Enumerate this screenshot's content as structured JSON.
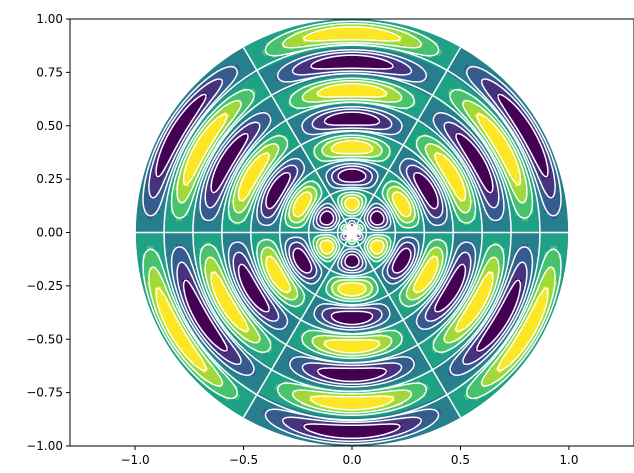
{
  "chart_data": {
    "type": "heatmap",
    "title": "",
    "xlabel": "",
    "ylabel": "",
    "xlim": [
      -1.3,
      1.3
    ],
    "ylim": [
      -1.0,
      1.0
    ],
    "x_ticks": [
      -1.0,
      -0.5,
      0.0,
      0.5,
      1.0
    ],
    "x_tick_labels": [
      "−1.0",
      "−0.5",
      "0.0",
      "0.5",
      "1.0"
    ],
    "y_ticks": [
      -1.0,
      -0.75,
      -0.5,
      -0.25,
      0.0,
      0.25,
      0.5,
      0.75,
      1.0
    ],
    "y_tick_labels": [
      "−1.00",
      "−0.75",
      "−0.50",
      "−0.25",
      "0.00",
      "0.25",
      "0.50",
      "0.75",
      "1.00"
    ],
    "grid": false,
    "legend": "none",
    "domain": "unit disk",
    "field": "cos(7.5 * pi * r) * sin(3 * theta)",
    "filled_levels": [
      -1.0,
      -0.75,
      -0.5,
      -0.25,
      0.0,
      0.25,
      0.5,
      0.75,
      1.0
    ],
    "line_levels_positive": [
      0.25,
      0.5,
      0.75
    ],
    "line_levels_negative": [
      -0.75,
      -0.5,
      -0.25
    ],
    "colormap": "viridis",
    "level_colors": [
      "#440154",
      "#46327e",
      "#365c8d",
      "#277f8e",
      "#1fa187",
      "#4ac16d",
      "#a0da39",
      "#fde725"
    ],
    "line_color": "#ffffff"
  }
}
